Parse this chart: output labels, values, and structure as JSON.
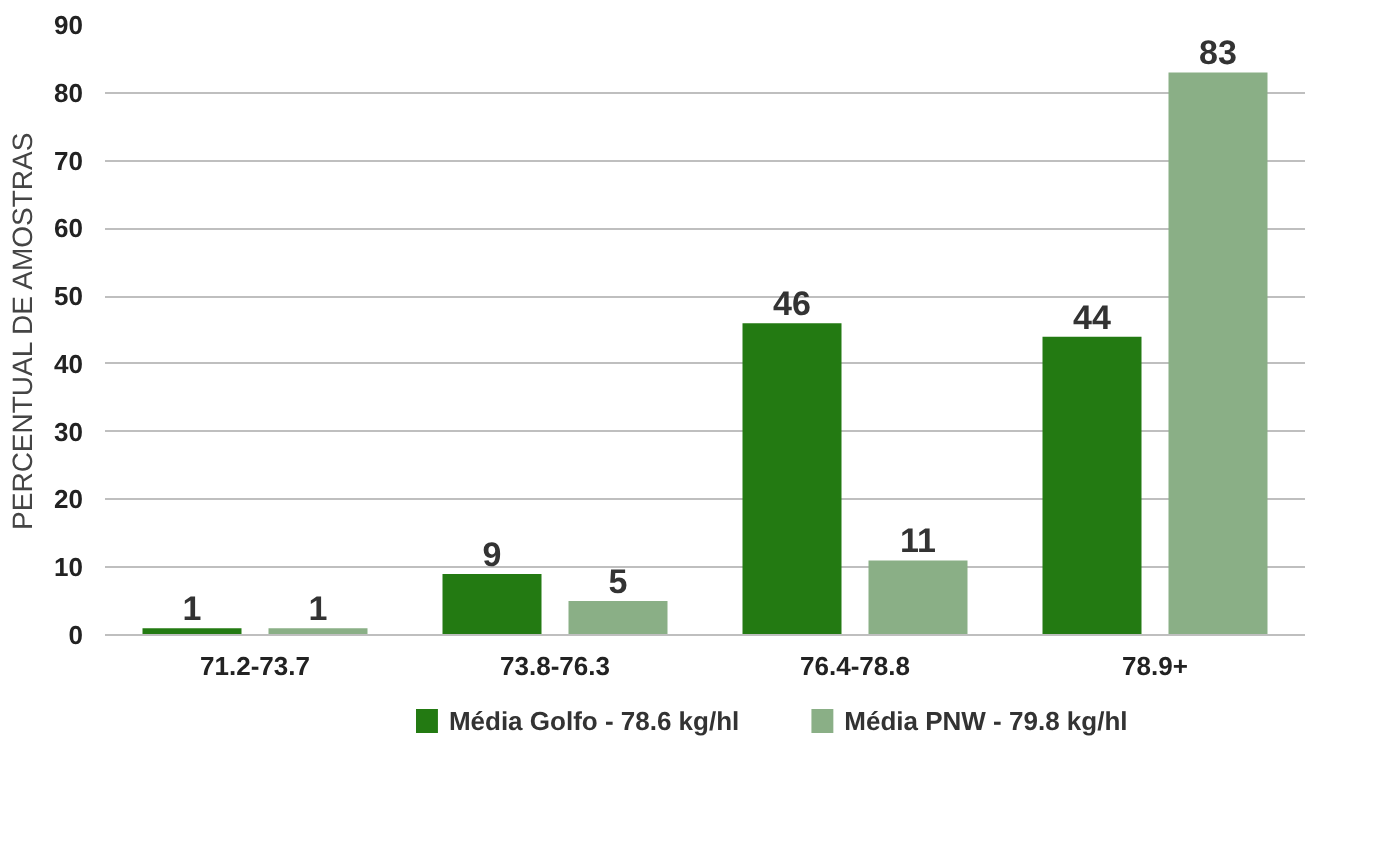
{
  "chart_data": {
    "type": "bar",
    "ylabel": "PERCENTUAL DE AMOSTRAS",
    "categories": [
      "71.2-73.7",
      "73.8-76.3",
      "76.4-78.8",
      "78.9+"
    ],
    "series": [
      {
        "name": "Média Golfo - 78.6 kg/hl",
        "color": "#237a12",
        "values": [
          1,
          9,
          46,
          44
        ]
      },
      {
        "name": "Média PNW - 79.8 kg/hl",
        "color": "#8aaf86",
        "values": [
          1,
          5,
          11,
          83
        ]
      }
    ],
    "ylim": [
      0,
      90
    ],
    "yticks": [
      0,
      10,
      20,
      30,
      40,
      50,
      60,
      70,
      80,
      90
    ],
    "grid": "y",
    "legend": "bottom",
    "data_labels": true
  }
}
